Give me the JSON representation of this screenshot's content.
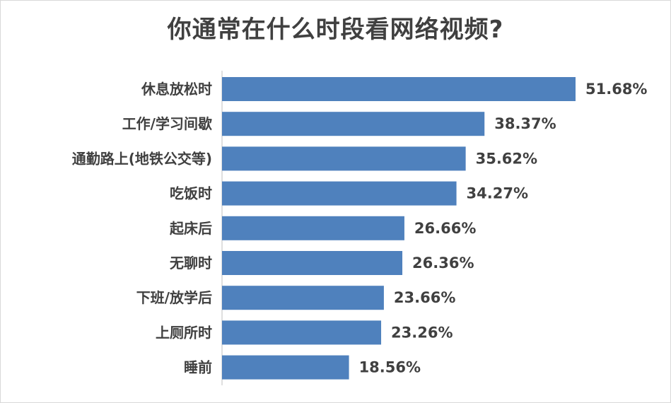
{
  "chart_data": {
    "type": "bar",
    "orientation": "horizontal",
    "title": "你通常在什么时段看网络视频?",
    "categories": [
      "休息放松时",
      "工作/学习间歇",
      "通勤路上(地铁公交等)",
      "吃饭时",
      "起床后",
      "无聊时",
      "下班/放学后",
      "上厕所时",
      "睡前"
    ],
    "values": [
      51.68,
      38.37,
      35.62,
      34.27,
      26.66,
      26.36,
      23.66,
      23.26,
      18.56
    ],
    "value_labels": [
      "51.68%",
      "38.37%",
      "35.62%",
      "34.27%",
      "26.66%",
      "26.36%",
      "23.66%",
      "23.26%",
      "18.56%"
    ],
    "unit": "%",
    "xlabel": "",
    "ylabel": "",
    "xlim": [
      0,
      51.68
    ],
    "grid": false,
    "legend": "none",
    "bar_color": "#4f81bd",
    "axis_color": "#bfbfbf",
    "text_color": "#404040"
  }
}
